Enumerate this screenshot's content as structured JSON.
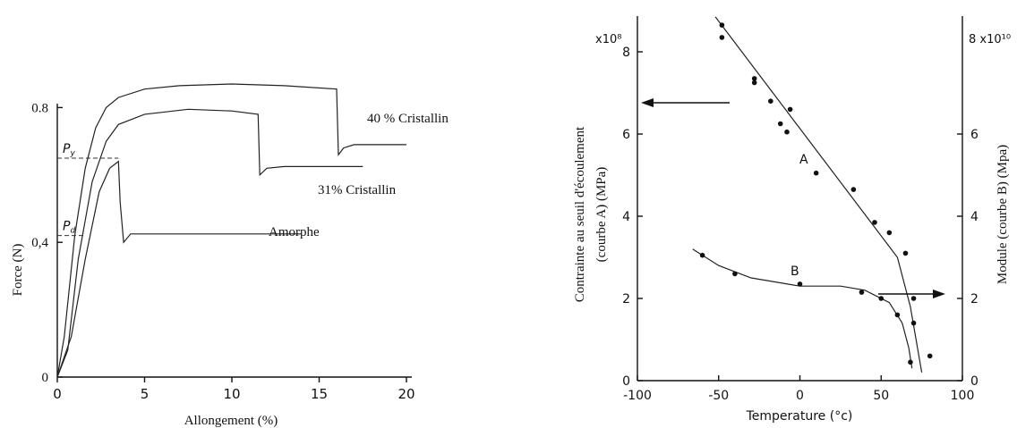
{
  "chart_data": [
    {
      "type": "line",
      "xlabel": "Allongement (%)",
      "ylabel": "Force (N)",
      "xlim": [
        0,
        20
      ],
      "ylim": [
        0,
        1.0
      ],
      "x_ticks": [
        "0",
        "5",
        "10",
        "15",
        "20"
      ],
      "y_ticks": [
        "0",
        "0,4",
        "0.8"
      ],
      "markers": [
        {
          "label": "P",
          "sub": "y",
          "value": 0.65
        },
        {
          "label": "P",
          "sub": "d",
          "value": 0.42
        }
      ],
      "series": [
        {
          "name": "40 % Cristallin",
          "x": [
            0,
            0.4,
            1,
            1.6,
            2.2,
            2.8,
            3.5,
            5,
            7,
            10,
            13,
            16,
            16.1,
            16.4,
            17,
            20
          ],
          "y": [
            0,
            0.12,
            0.42,
            0.62,
            0.74,
            0.8,
            0.83,
            0.855,
            0.865,
            0.87,
            0.865,
            0.855,
            0.66,
            0.68,
            0.69,
            0.69
          ]
        },
        {
          "name": "31% Cristallin",
          "x": [
            0,
            0.6,
            1.2,
            2,
            2.8,
            3.5,
            5,
            7.5,
            10,
            11.5,
            11.6,
            12,
            13,
            15,
            17.5
          ],
          "y": [
            0,
            0.08,
            0.35,
            0.58,
            0.7,
            0.75,
            0.78,
            0.795,
            0.79,
            0.78,
            0.6,
            0.62,
            0.625,
            0.625,
            0.625
          ]
        },
        {
          "name": "Amorphe",
          "x": [
            0,
            0.8,
            1.6,
            2.4,
            3.0,
            3.5,
            3.6,
            3.8,
            4.2,
            5,
            7,
            10,
            14
          ],
          "y": [
            0,
            0.12,
            0.35,
            0.55,
            0.62,
            0.64,
            0.52,
            0.4,
            0.425,
            0.425,
            0.425,
            0.425,
            0.425
          ]
        }
      ]
    },
    {
      "type": "scatter",
      "xlabel": "Temperature (°c)",
      "ylabel_left": "Contrainte au seuil d'écoulement (courbe A) (MPa)",
      "ylabel_right": "Module (courbe B) (Mpa)",
      "left_scale": "x10⁸",
      "right_scale": "8 x10¹⁰",
      "xlim": [
        -100,
        100
      ],
      "ylim": [
        0,
        9
      ],
      "x_ticks": [
        "-100",
        "-50",
        "0",
        "50",
        "100"
      ],
      "y_ticks_left": [
        "0",
        "2",
        "4",
        "6",
        "8"
      ],
      "y_ticks_right": [
        "0",
        "2",
        "4",
        "6"
      ],
      "series": [
        {
          "name": "A",
          "points": [
            [
              -48,
              8.65
            ],
            [
              -48,
              8.35
            ],
            [
              -28,
              7.35
            ],
            [
              -28,
              7.25
            ],
            [
              -18,
              6.8
            ],
            [
              -12,
              6.25
            ],
            [
              -8,
              6.05
            ],
            [
              -6,
              6.6
            ],
            [
              10,
              5.05
            ],
            [
              33,
              4.65
            ],
            [
              46,
              3.85
            ],
            [
              55,
              3.6
            ],
            [
              65,
              3.1
            ],
            [
              80,
              0.6
            ]
          ],
          "fit": [
            [
              -52,
              8.85
            ],
            [
              60,
              3.0
            ],
            [
              68,
              1.8
            ],
            [
              75,
              0.2
            ]
          ]
        },
        {
          "name": "B",
          "points": [
            [
              -60,
              3.05
            ],
            [
              -40,
              2.6
            ],
            [
              0,
              2.35
            ],
            [
              38,
              2.15
            ],
            [
              50,
              2.0
            ],
            [
              60,
              1.6
            ],
            [
              70,
              2.0
            ],
            [
              70,
              1.4
            ],
            [
              68,
              0.45
            ]
          ],
          "fit": [
            [
              -66,
              3.2
            ],
            [
              -50,
              2.8
            ],
            [
              -30,
              2.5
            ],
            [
              0,
              2.3
            ],
            [
              25,
              2.3
            ],
            [
              40,
              2.2
            ],
            [
              55,
              1.9
            ],
            [
              63,
              1.4
            ],
            [
              67,
              0.8
            ],
            [
              69,
              0.3
            ]
          ]
        }
      ],
      "annotations": [
        "A",
        "B"
      ]
    }
  ]
}
